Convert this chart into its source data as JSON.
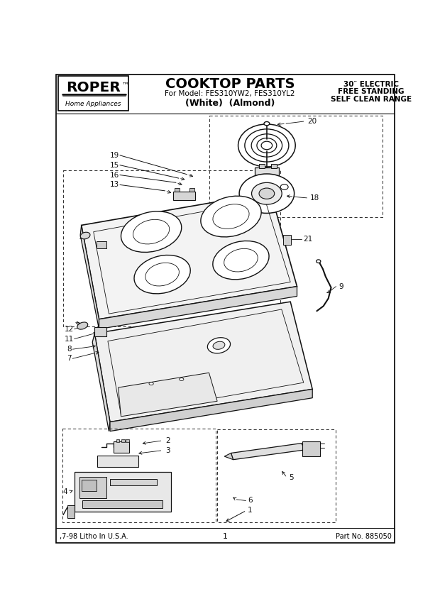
{
  "title": "COOKTOP PARTS",
  "model_line": "For Model: FES310YW2, FES310YL2",
  "colors_line": "(White)  (Almond)",
  "brand_name": "ROPER",
  "brand_tm": "™",
  "brand_sub": "Home Appliances",
  "right_h1": "30″ ELECTRIC",
  "right_h2": "FREE STANDING",
  "right_h3": "SELF CLEAN RANGE",
  "footer_left": ",7-98 Litho In U.S.A.",
  "footer_center": "1",
  "footer_right": "Part No. 885050",
  "bg": "#ffffff",
  "lc": "#222222",
  "dc": "#111111"
}
